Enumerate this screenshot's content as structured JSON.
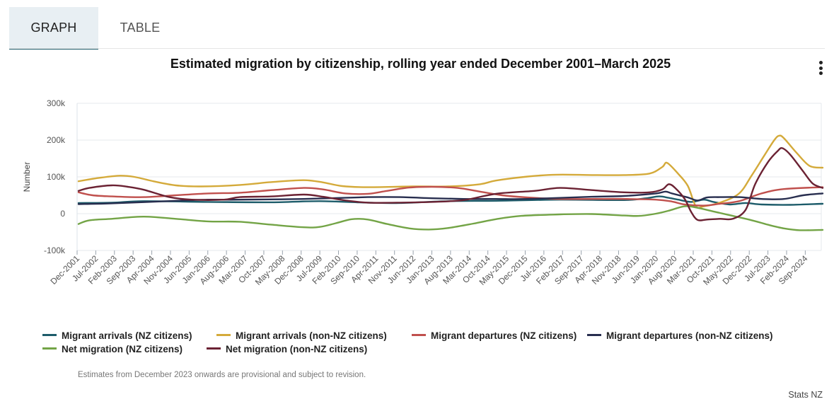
{
  "tabs": [
    {
      "label": "GRAPH",
      "active": true
    },
    {
      "label": "TABLE",
      "active": false
    }
  ],
  "menu_icon": "kebab-menu-icon",
  "note": "Estimates from December 2023 onwards are provisional and subject to revision.",
  "credit": "Stats NZ",
  "chart_data": {
    "type": "line",
    "title": "Estimated migration by citizenship, rolling year ended December 2001–March 2025",
    "xlabel": "",
    "ylabel": "Number",
    "ylim": [
      -100000,
      300000
    ],
    "yticks": [
      -100000,
      0,
      100000,
      200000,
      300000
    ],
    "ytick_labels": [
      "-100k",
      "0",
      "100k",
      "200k",
      "300k"
    ],
    "grid": true,
    "legend_position": "bottom",
    "x_range": [
      "Dec-2001",
      "Mar-2025"
    ],
    "x_tick_labels": [
      "Dec-2001",
      "Jul-2002",
      "Feb-2003",
      "Sep-2003",
      "Apr-2004",
      "Nov-2004",
      "Jun-2005",
      "Jan-2006",
      "Aug-2006",
      "Mar-2007",
      "Oct-2007",
      "May-2008",
      "Dec-2008",
      "Jul-2009",
      "Feb-2010",
      "Sep-2010",
      "Apr-2011",
      "Nov-2011",
      "Jun-2012",
      "Jan-2013",
      "Aug-2013",
      "Mar-2014",
      "Oct-2014",
      "May-2015",
      "Dec-2015",
      "Jul-2016",
      "Feb-2017",
      "Sep-2017",
      "Apr-2018",
      "Nov-2018",
      "Jun-2019",
      "Jan-2020",
      "Aug-2020",
      "Mar-2021",
      "Oct-2021",
      "May-2022",
      "Dec-2022",
      "Jul-2023",
      "Feb-2024",
      "Sep-2024"
    ],
    "series": [
      {
        "name": "Migrant arrivals (NZ citizens)",
        "color": "#1d5c6a",
        "points": [
          [
            2001.96,
            29000
          ],
          [
            2003,
            30000
          ],
          [
            2004,
            34000
          ],
          [
            2006,
            32000
          ],
          [
            2008,
            31000
          ],
          [
            2009.5,
            34000
          ],
          [
            2011,
            30000
          ],
          [
            2012,
            29000
          ],
          [
            2013.5,
            34000
          ],
          [
            2015,
            35000
          ],
          [
            2017,
            38000
          ],
          [
            2019,
            37000
          ],
          [
            2019.7,
            42000
          ],
          [
            2020.1,
            47000
          ],
          [
            2020.4,
            43000
          ],
          [
            2020.7,
            38000
          ],
          [
            2021.1,
            32000
          ],
          [
            2021.5,
            38000
          ],
          [
            2021.8,
            32000
          ],
          [
            2022.3,
            25000
          ],
          [
            2022.8,
            29000
          ],
          [
            2023.3,
            25000
          ],
          [
            2024.2,
            24000
          ],
          [
            2025.21,
            27000
          ]
        ]
      },
      {
        "name": "Migrant arrivals (non-NZ citizens)",
        "color": "#d4aa3a",
        "points": [
          [
            2001.96,
            88000
          ],
          [
            2002.5,
            96000
          ],
          [
            2003.2,
            103000
          ],
          [
            2003.7,
            100000
          ],
          [
            2004.3,
            88000
          ],
          [
            2005,
            77000
          ],
          [
            2005.8,
            74000
          ],
          [
            2007,
            78000
          ],
          [
            2008,
            86000
          ],
          [
            2009,
            91000
          ],
          [
            2009.6,
            85000
          ],
          [
            2010.2,
            75000
          ],
          [
            2011,
            72000
          ],
          [
            2012.4,
            74000
          ],
          [
            2013.5,
            74000
          ],
          [
            2014.5,
            80000
          ],
          [
            2015,
            90000
          ],
          [
            2016,
            101000
          ],
          [
            2016.9,
            106000
          ],
          [
            2018,
            105000
          ],
          [
            2019,
            105000
          ],
          [
            2019.8,
            109000
          ],
          [
            2020.2,
            127000
          ],
          [
            2020.35,
            138000
          ],
          [
            2020.7,
            108000
          ],
          [
            2021.0,
            75000
          ],
          [
            2021.25,
            20000
          ],
          [
            2021.5,
            20000
          ],
          [
            2022.0,
            30000
          ],
          [
            2022.6,
            55000
          ],
          [
            2023.0,
            105000
          ],
          [
            2023.4,
            160000
          ],
          [
            2023.7,
            200000
          ],
          [
            2023.85,
            212000
          ],
          [
            2024.0,
            205000
          ],
          [
            2024.4,
            165000
          ],
          [
            2024.8,
            130000
          ],
          [
            2025.21,
            125000
          ]
        ]
      },
      {
        "name": "Migrant departures (NZ citizens)",
        "color": "#c0504d",
        "points": [
          [
            2001.96,
            58000
          ],
          [
            2002.4,
            50000
          ],
          [
            2003,
            47000
          ],
          [
            2004,
            45000
          ],
          [
            2005,
            50000
          ],
          [
            2006,
            55000
          ],
          [
            2007,
            57000
          ],
          [
            2008,
            64000
          ],
          [
            2009,
            70000
          ],
          [
            2009.6,
            66000
          ],
          [
            2010.3,
            55000
          ],
          [
            2011,
            54000
          ],
          [
            2011.6,
            62000
          ],
          [
            2012.3,
            71000
          ],
          [
            2013,
            73000
          ],
          [
            2013.8,
            70000
          ],
          [
            2014.5,
            60000
          ],
          [
            2015.2,
            50000
          ],
          [
            2016,
            44000
          ],
          [
            2017,
            40000
          ],
          [
            2018,
            40000
          ],
          [
            2019,
            40000
          ],
          [
            2020,
            38000
          ],
          [
            2020.5,
            33000
          ],
          [
            2020.9,
            25000
          ],
          [
            2021.5,
            22000
          ],
          [
            2022.0,
            27000
          ],
          [
            2022.6,
            34000
          ],
          [
            2023.3,
            55000
          ],
          [
            2024,
            67000
          ],
          [
            2025.21,
            72000
          ]
        ]
      },
      {
        "name": "Migrant departures (non-NZ citizens)",
        "color": "#282e4f",
        "points": [
          [
            2001.96,
            26000
          ],
          [
            2003,
            28000
          ],
          [
            2005,
            35000
          ],
          [
            2006,
            38000
          ],
          [
            2007,
            38000
          ],
          [
            2009,
            40000
          ],
          [
            2011,
            45000
          ],
          [
            2012,
            45000
          ],
          [
            2013,
            42000
          ],
          [
            2014,
            40000
          ],
          [
            2015,
            40000
          ],
          [
            2016,
            40000
          ],
          [
            2018,
            46000
          ],
          [
            2019,
            48000
          ],
          [
            2020,
            55000
          ],
          [
            2020.3,
            60000
          ],
          [
            2020.5,
            55000
          ],
          [
            2021,
            44000
          ],
          [
            2021.3,
            36000
          ],
          [
            2021.6,
            44000
          ],
          [
            2022,
            45000
          ],
          [
            2022.6,
            45000
          ],
          [
            2023.3,
            40000
          ],
          [
            2024,
            40000
          ],
          [
            2024.6,
            50000
          ],
          [
            2025.21,
            55000
          ]
        ]
      },
      {
        "name": "Net migration (NZ citizens)",
        "color": "#73a446",
        "points": [
          [
            2001.96,
            -28000
          ],
          [
            2002.3,
            -18000
          ],
          [
            2003,
            -14000
          ],
          [
            2004,
            -8000
          ],
          [
            2005,
            -14000
          ],
          [
            2006,
            -21000
          ],
          [
            2007,
            -22000
          ],
          [
            2008,
            -30000
          ],
          [
            2009,
            -37000
          ],
          [
            2009.5,
            -36000
          ],
          [
            2010,
            -26000
          ],
          [
            2010.5,
            -15000
          ],
          [
            2011,
            -16000
          ],
          [
            2011.6,
            -28000
          ],
          [
            2012.3,
            -40000
          ],
          [
            2012.9,
            -43000
          ],
          [
            2013.5,
            -39000
          ],
          [
            2014.3,
            -27000
          ],
          [
            2015,
            -15000
          ],
          [
            2015.8,
            -6000
          ],
          [
            2017,
            -2000
          ],
          [
            2018,
            -1000
          ],
          [
            2019,
            -5000
          ],
          [
            2019.5,
            -6000
          ],
          [
            2020,
            0
          ],
          [
            2020.4,
            8000
          ],
          [
            2020.9,
            20000
          ],
          [
            2021.3,
            16000
          ],
          [
            2021.8,
            6000
          ],
          [
            2022.4,
            -6000
          ],
          [
            2023,
            -18000
          ],
          [
            2023.5,
            -30000
          ],
          [
            2024,
            -40000
          ],
          [
            2024.5,
            -45000
          ],
          [
            2025.21,
            -44000
          ]
        ]
      },
      {
        "name": "Net migration (non-NZ citizens)",
        "color": "#6b2233",
        "points": [
          [
            2001.96,
            62000
          ],
          [
            2002.3,
            70000
          ],
          [
            2003,
            77000
          ],
          [
            2003.5,
            73000
          ],
          [
            2004,
            65000
          ],
          [
            2004.8,
            45000
          ],
          [
            2005.5,
            38000
          ],
          [
            2006.5,
            38000
          ],
          [
            2007,
            45000
          ],
          [
            2008,
            47000
          ],
          [
            2009,
            52000
          ],
          [
            2009.6,
            46000
          ],
          [
            2010.3,
            36000
          ],
          [
            2011,
            30000
          ],
          [
            2012,
            30000
          ],
          [
            2013,
            32000
          ],
          [
            2014,
            37000
          ],
          [
            2015,
            54000
          ],
          [
            2016.2,
            62000
          ],
          [
            2017,
            70000
          ],
          [
            2018,
            64000
          ],
          [
            2019,
            58000
          ],
          [
            2019.8,
            58000
          ],
          [
            2020.2,
            66000
          ],
          [
            2020.4,
            80000
          ],
          [
            2020.6,
            70000
          ],
          [
            2020.9,
            40000
          ],
          [
            2021.1,
            5000
          ],
          [
            2021.3,
            -17000
          ],
          [
            2021.6,
            -16000
          ],
          [
            2022,
            -14000
          ],
          [
            2022.4,
            -14000
          ],
          [
            2022.8,
            10000
          ],
          [
            2023.1,
            80000
          ],
          [
            2023.5,
            140000
          ],
          [
            2023.8,
            170000
          ],
          [
            2023.95,
            178000
          ],
          [
            2024.2,
            160000
          ],
          [
            2024.6,
            115000
          ],
          [
            2024.9,
            82000
          ],
          [
            2025.21,
            70000
          ]
        ]
      }
    ]
  }
}
